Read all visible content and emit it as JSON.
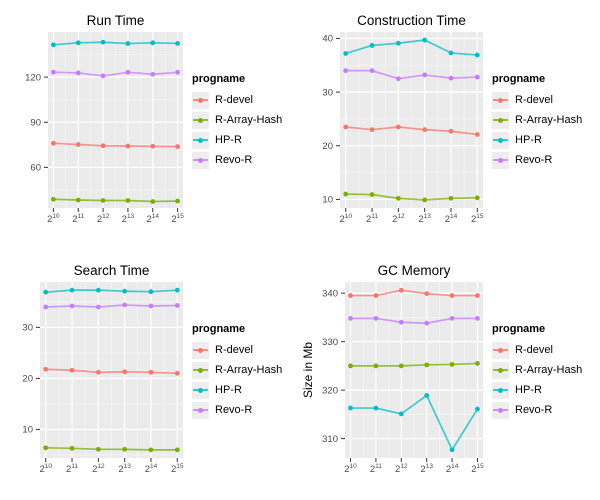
{
  "legend": {
    "title": "progname",
    "items": [
      {
        "label": "R-devel",
        "color": "#F8766D"
      },
      {
        "label": "R-Array-Hash",
        "color": "#7CAE00"
      },
      {
        "label": "HP-R",
        "color": "#00BFC4"
      },
      {
        "label": "Revo-R",
        "color": "#C77CFF"
      }
    ]
  },
  "x_axis": {
    "base": "2",
    "tick_exponents": [
      "10",
      "11",
      "12",
      "13",
      "14",
      "15"
    ],
    "x_values": [
      10,
      11,
      12,
      13,
      14,
      15
    ],
    "xlim": [
      9.75,
      15.25
    ]
  },
  "style_colors": {
    "panel_background": "#EBEBEB",
    "major_grid": "#FFFFFF",
    "minor_grid": "#F5F5F5",
    "tick_mark": "#333333",
    "tick_label": "#4A4A4A",
    "title": "#000000"
  },
  "chart_data": [
    {
      "type": "line",
      "title": "Run Time",
      "ylabel": "",
      "ylim": [
        33,
        150
      ],
      "yticks": [
        60,
        90,
        120
      ],
      "grid": true,
      "legend_position": "right",
      "series": [
        {
          "name": "R-devel",
          "values": [
            76.0,
            75.2,
            74.4,
            74.2,
            74.0,
            73.8
          ]
        },
        {
          "name": "R-Array-Hash",
          "values": [
            38.8,
            38.3,
            38.0,
            38.0,
            37.3,
            37.6
          ]
        },
        {
          "name": "HP-R",
          "values": [
            141.5,
            142.8,
            143.2,
            142.3,
            142.8,
            142.4
          ]
        },
        {
          "name": "Revo-R",
          "values": [
            123.3,
            122.8,
            120.8,
            123.2,
            121.9,
            123.2
          ]
        }
      ]
    },
    {
      "type": "line",
      "title": "Construction Time",
      "ylabel": "",
      "ylim": [
        8.4,
        41.2
      ],
      "yticks": [
        10,
        20,
        30,
        40
      ],
      "grid": true,
      "legend_position": "right",
      "series": [
        {
          "name": "R-devel",
          "values": [
            23.5,
            23.0,
            23.5,
            23.0,
            22.7,
            22.1
          ]
        },
        {
          "name": "R-Array-Hash",
          "values": [
            11.0,
            10.9,
            10.2,
            9.9,
            10.2,
            10.3
          ]
        },
        {
          "name": "HP-R",
          "values": [
            37.2,
            38.7,
            39.1,
            39.7,
            37.3,
            36.9
          ]
        },
        {
          "name": "Revo-R",
          "values": [
            34.0,
            34.0,
            32.5,
            33.2,
            32.6,
            32.8
          ]
        }
      ]
    },
    {
      "type": "line",
      "title": "Search Time",
      "ylabel": "",
      "ylim": [
        4.4,
        38.9
      ],
      "yticks": [
        10,
        20,
        30
      ],
      "grid": true,
      "legend_position": "right",
      "series": [
        {
          "name": "R-devel",
          "values": [
            21.8,
            21.6,
            21.2,
            21.3,
            21.2,
            21.0
          ]
        },
        {
          "name": "R-Array-Hash",
          "values": [
            6.4,
            6.3,
            6.1,
            6.1,
            6.0,
            6.0
          ]
        },
        {
          "name": "HP-R",
          "values": [
            36.9,
            37.3,
            37.3,
            37.1,
            37.0,
            37.3
          ]
        },
        {
          "name": "Revo-R",
          "values": [
            34.0,
            34.2,
            34.0,
            34.4,
            34.2,
            34.3
          ]
        }
      ]
    },
    {
      "type": "line",
      "title": "GC Memory",
      "ylabel": "Size in Mb",
      "ylim": [
        306,
        342.3
      ],
      "yticks": [
        310,
        320,
        330,
        340
      ],
      "grid": true,
      "legend_position": "right",
      "series": [
        {
          "name": "R-devel",
          "values": [
            339.5,
            339.5,
            340.6,
            339.9,
            339.5,
            339.5
          ]
        },
        {
          "name": "R-Array-Hash",
          "values": [
            325.0,
            325.0,
            325.0,
            325.2,
            325.3,
            325.5
          ]
        },
        {
          "name": "HP-R",
          "values": [
            316.3,
            316.3,
            315.1,
            318.9,
            307.7,
            316.1
          ]
        },
        {
          "name": "Revo-R",
          "values": [
            334.8,
            334.8,
            334.0,
            333.8,
            334.8,
            334.8
          ]
        }
      ]
    }
  ]
}
